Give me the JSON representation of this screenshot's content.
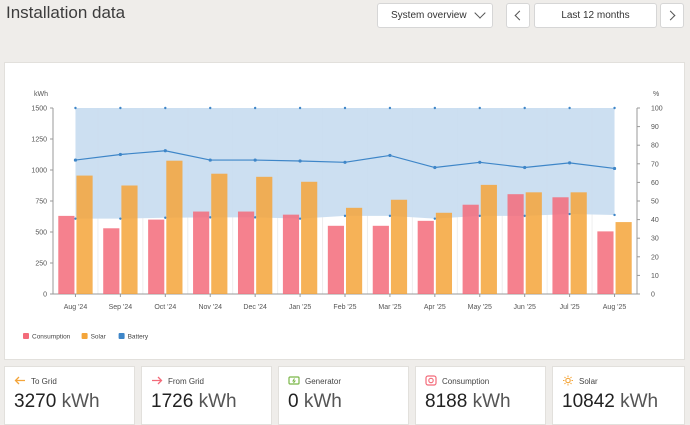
{
  "header": {
    "title": "Installation data",
    "view_select": "System overview",
    "period": "Last 12 months"
  },
  "chart_data": {
    "type": "bar",
    "categories": [
      "Aug '24",
      "Sep '24",
      "Oct '24",
      "Nov '24",
      "Dec '24",
      "Jan '25",
      "Feb '25",
      "Mar '25",
      "Apr '25",
      "May '25",
      "Jun '25",
      "Jul '25",
      "Aug '25"
    ],
    "series": [
      {
        "name": "Consumption",
        "color": "#f36b7a",
        "values": [
          630,
          530,
          600,
          665,
          665,
          640,
          550,
          550,
          590,
          720,
          805,
          780,
          505
        ]
      },
      {
        "name": "Solar",
        "color": "#f4a53a",
        "values": [
          955,
          875,
          1075,
          970,
          945,
          905,
          695,
          760,
          655,
          880,
          820,
          820,
          580
        ]
      },
      {
        "name": "Battery",
        "color": "#3e86c8",
        "axis": "right",
        "values": [
          72,
          75,
          77,
          72,
          72,
          71.5,
          70.8,
          74.5,
          68,
          70.8,
          68,
          70.5,
          67.5
        ]
      }
    ],
    "battery_band": {
      "upper": 100,
      "lower": [
        40.5,
        40.5,
        41,
        41.2,
        41.2,
        40.5,
        42,
        42,
        40.5,
        42,
        42,
        43,
        42.5
      ]
    },
    "ylabel_left": "kWh",
    "ylabel_right": "%",
    "ylim_left": [
      0,
      1500
    ],
    "ylim_right": [
      0,
      100
    ],
    "y_ticks_left": [
      "0",
      "250",
      "500",
      "750",
      "1000",
      "1250",
      "1500"
    ],
    "y_ticks_right": [
      "0",
      "10",
      "20",
      "30",
      "40",
      "50",
      "60",
      "70",
      "80",
      "90",
      "100"
    ],
    "legend": [
      "Consumption",
      "Solar",
      "Battery"
    ],
    "legend_position": "bottom-left"
  },
  "colors": {
    "consumption": "#f36b7a",
    "solar": "#f4a53a",
    "battery": "#3e86c8",
    "band": "#c6dbef"
  },
  "stats": [
    {
      "label": "To Grid",
      "value": "3270",
      "unit": "kWh",
      "icon": "to-grid-icon"
    },
    {
      "label": "From Grid",
      "value": "1726",
      "unit": "kWh",
      "icon": "from-grid-icon"
    },
    {
      "label": "Generator",
      "value": "0",
      "unit": "kWh",
      "icon": "generator-icon"
    },
    {
      "label": "Consumption",
      "value": "8188",
      "unit": "kWh",
      "icon": "consumption-icon"
    },
    {
      "label": "Solar",
      "value": "10842",
      "unit": "kWh",
      "icon": "solar-icon"
    }
  ]
}
